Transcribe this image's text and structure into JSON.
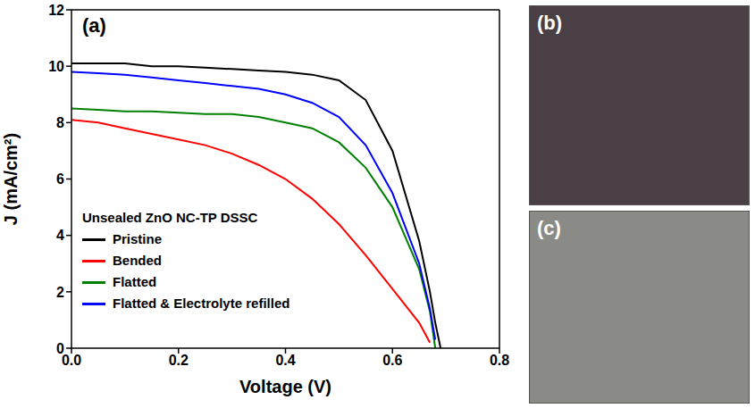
{
  "chart_data": {
    "type": "line",
    "annotations": [
      "(a)"
    ],
    "x_label": "Voltage (V)",
    "y_label": "J (mA/cm²)",
    "legend_title": "Unsealed ZnO NC-TP DSSC",
    "legend": "lower left",
    "grid": false,
    "x": [
      0,
      0.05,
      0.1,
      0.15,
      0.2,
      0.25,
      0.3,
      0.35,
      0.4,
      0.45,
      0.5,
      0.55,
      0.6,
      0.65,
      0.67,
      0.68,
      0.69
    ],
    "series": [
      {
        "name": "Pristine",
        "color": "#000000",
        "values": [
          10.1,
          10.1,
          10.1,
          10.0,
          10.0,
          9.95,
          9.9,
          9.85,
          9.8,
          9.7,
          9.5,
          8.8,
          7.0,
          3.8,
          2.0,
          0.9,
          0
        ]
      },
      {
        "name": "Bended",
        "color": "#ff0000",
        "values": [
          8.1,
          8.0,
          7.8,
          7.6,
          7.4,
          7.2,
          6.9,
          6.5,
          6.0,
          5.3,
          4.4,
          3.3,
          2.1,
          0.9,
          0.2,
          null,
          null
        ]
      },
      {
        "name": "Flatted",
        "color": "#008000",
        "values": [
          8.5,
          8.45,
          8.4,
          8.4,
          8.35,
          8.3,
          8.3,
          8.2,
          8.0,
          7.8,
          7.3,
          6.4,
          5.0,
          2.8,
          1.3,
          0,
          null
        ]
      },
      {
        "name": "Flatted & Electrolyte refilled",
        "color": "#0000ff",
        "values": [
          9.8,
          9.75,
          9.7,
          9.6,
          9.5,
          9.4,
          9.3,
          9.2,
          9.0,
          8.7,
          8.2,
          7.2,
          5.5,
          3.0,
          1.4,
          0.3,
          null
        ]
      }
    ],
    "xlim": [
      0,
      0.8
    ],
    "xticks": [
      {
        "value": 0,
        "label": "0.0"
      },
      0.2,
      0.4,
      0.6,
      0.8
    ],
    "ylim": [
      0,
      12
    ],
    "yticks": [
      0,
      2,
      4,
      6,
      8,
      10,
      12
    ]
  },
  "panels": [
    {
      "label": "(b)"
    },
    {
      "label": "(c)"
    }
  ]
}
